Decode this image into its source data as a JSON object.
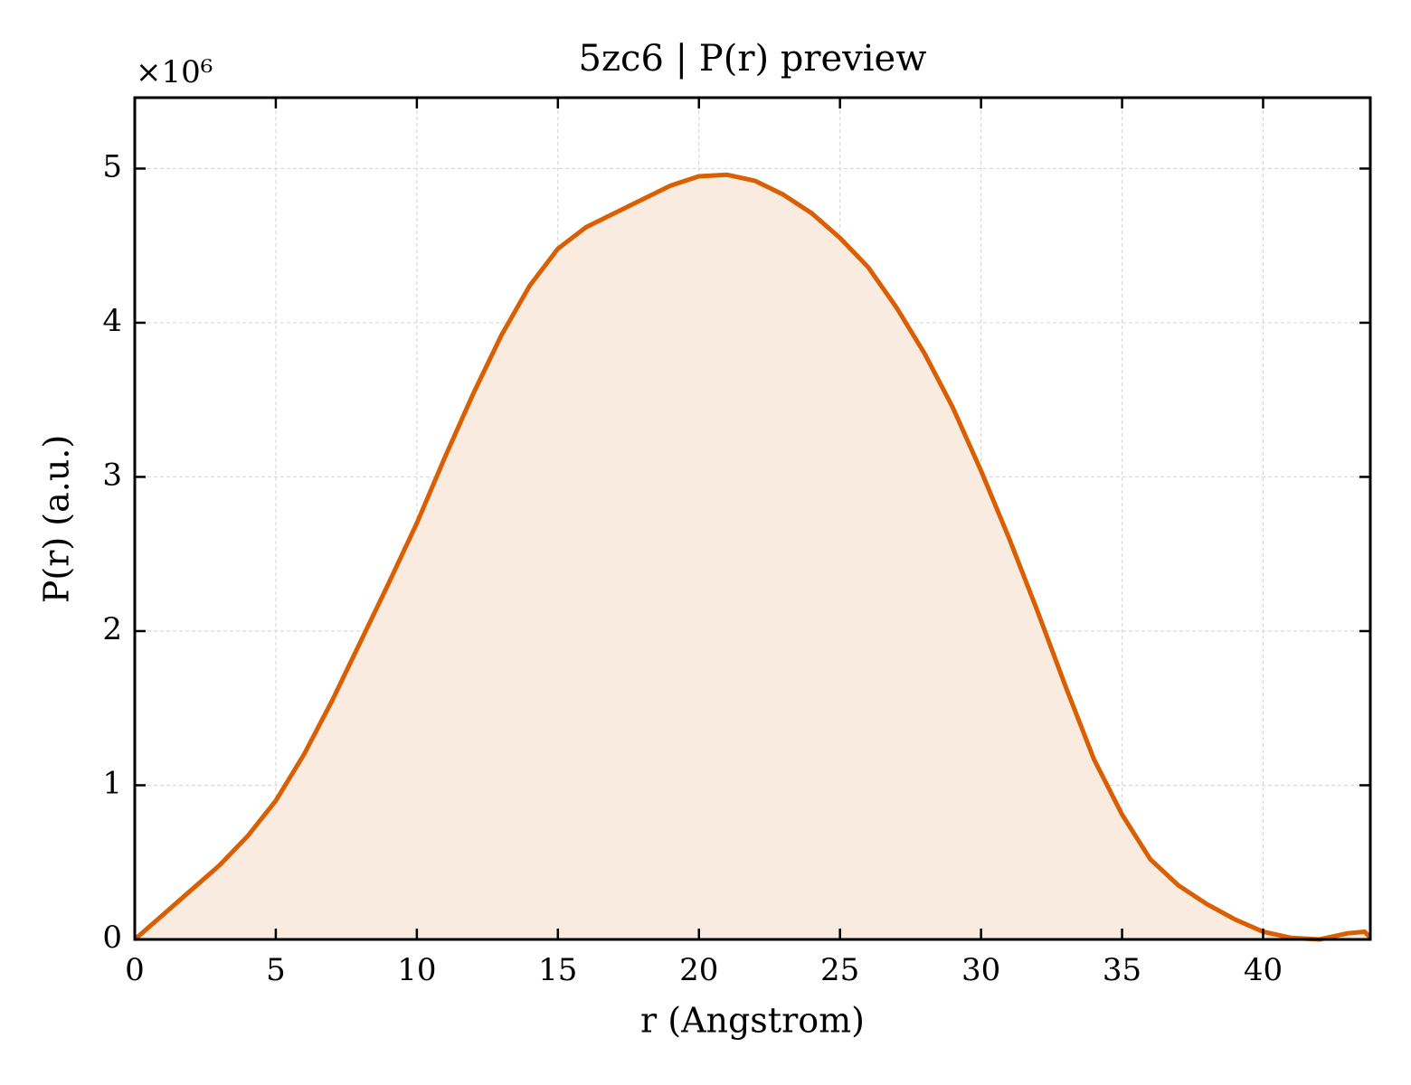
{
  "chart_data": {
    "type": "line",
    "title": "5zc6 | P(r) preview",
    "x_label": "r (Angstrom)",
    "y_label": "P(r) (a.u.)",
    "y_offset_label": "×10⁶",
    "x": [
      0,
      1,
      2,
      3,
      4,
      5,
      6,
      7,
      8,
      9,
      10,
      11,
      12,
      13,
      14,
      15,
      16,
      17,
      18,
      19,
      20,
      21,
      22,
      23,
      24,
      25,
      26,
      27,
      28,
      29,
      30,
      31,
      32,
      33,
      34,
      35,
      36,
      37,
      38,
      39,
      40,
      41,
      42,
      43,
      43.6,
      43.8
    ],
    "series": [
      {
        "name": "P(r)",
        "color": "#d95f02",
        "fill": "#f9ebe0",
        "values": [
          0,
          0.16,
          0.32,
          0.48,
          0.67,
          0.9,
          1.2,
          1.55,
          1.93,
          2.31,
          2.7,
          3.13,
          3.54,
          3.92,
          4.24,
          4.48,
          4.62,
          4.71,
          4.8,
          4.89,
          4.95,
          4.96,
          4.92,
          4.83,
          4.71,
          4.55,
          4.36,
          4.1,
          3.8,
          3.45,
          3.04,
          2.6,
          2.13,
          1.64,
          1.17,
          0.81,
          0.52,
          0.35,
          0.23,
          0.13,
          0.05,
          0.01,
          0,
          0.04,
          0.05,
          0.01
        ]
      }
    ],
    "xlim": [
      0,
      43.8
    ],
    "ylim": [
      0,
      5.46
    ],
    "xticks": [
      0,
      5,
      10,
      15,
      20,
      25,
      30,
      35,
      40
    ],
    "yticks": [
      0,
      1,
      2,
      3,
      4,
      5
    ],
    "grid": true
  }
}
